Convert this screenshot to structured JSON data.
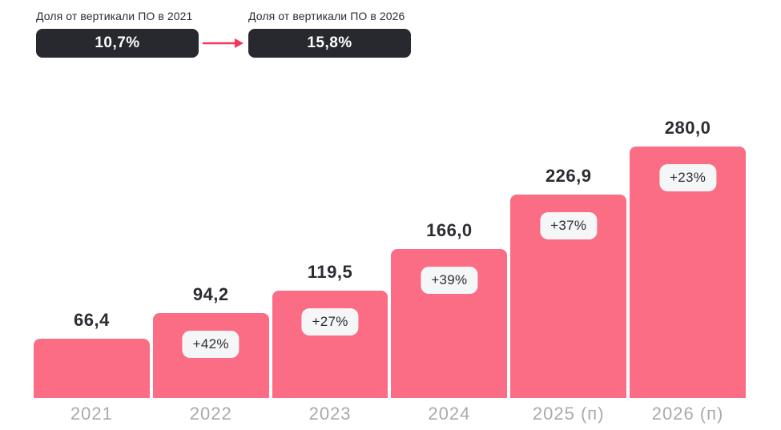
{
  "header": {
    "left": {
      "label": "Доля от вертикали ПО в 2021",
      "value": "10,7%"
    },
    "right": {
      "label": "Доля от вертикали ПО в 2026",
      "value": "15,8%"
    }
  },
  "colors": {
    "bar": "#fb6c85",
    "dark_badge": "#27292e",
    "arrow": "#f5365c",
    "value_text": "#2b2d33",
    "axis_text": "#a8aaaf",
    "growth_badge_bg": "#f5f6f8",
    "background": "#ffffff"
  },
  "chart_data": {
    "type": "bar",
    "categories": [
      "2021",
      "2022",
      "2023",
      "2024",
      "2025 (п)",
      "2026 (п)"
    ],
    "values": [
      66.4,
      94.2,
      119.5,
      166.0,
      226.9,
      280.0
    ],
    "value_labels": [
      "66,4",
      "94,2",
      "119,5",
      "166,0",
      "226,9",
      "280,0"
    ],
    "growth_labels": [
      "",
      "+42%",
      "+27%",
      "+39%",
      "+37%",
      "+23%"
    ],
    "title": "",
    "xlabel": "",
    "ylabel": "",
    "ylim": [
      0,
      280
    ],
    "grid": false,
    "legend": false
  }
}
